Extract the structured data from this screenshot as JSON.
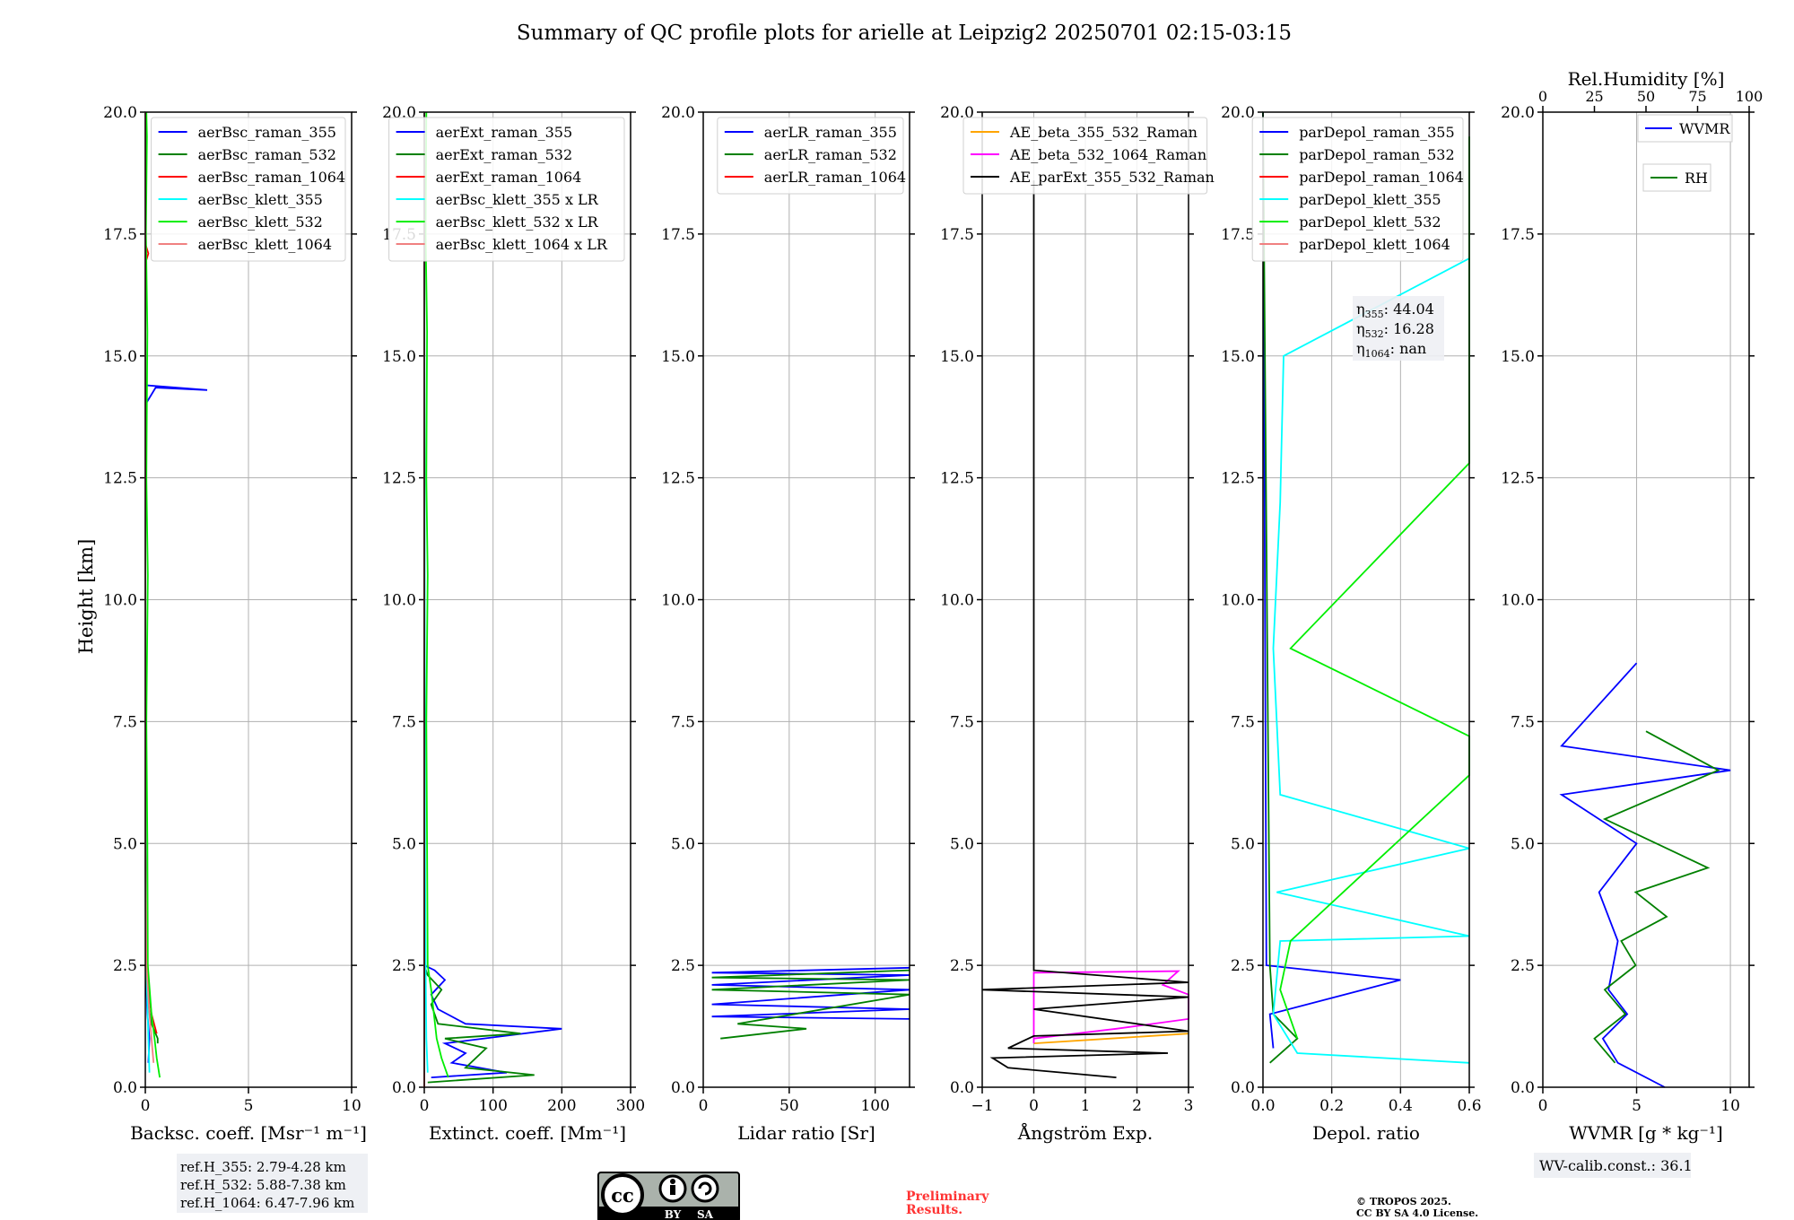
{
  "figure": {
    "title": "Summary of QC profile plots for arielle at Leipzig2 20250701 02:15-03:15",
    "ylabel": "Height [km]",
    "ylim": [
      0,
      20
    ],
    "yticks": [
      "0.0",
      "2.5",
      "5.0",
      "7.5",
      "10.0",
      "12.5",
      "15.0",
      "17.5",
      "20.0"
    ],
    "ref_heights": [
      "ref.H_355: 2.79-4.28 km",
      "ref.H_532: 5.88-7.38 km",
      "ref.H_1064: 6.47-7.96 km"
    ],
    "wv_calib": "WV-calib.const.: 36.1",
    "eta_labels": [
      "η355: 44.04",
      "η532: 16.28",
      "η1064: nan"
    ],
    "eta": [
      {
        "sub": "355",
        "value": "44.04"
      },
      {
        "sub": "532",
        "value": "16.28"
      },
      {
        "sub": "1064",
        "value": "nan"
      }
    ],
    "preliminary": [
      "Preliminary",
      "Results."
    ],
    "copyright": [
      "© TROPOS 2025.",
      "CC BY SA 4.0 License."
    ],
    "license_badge": {
      "icon": "cc-by-sa-icon",
      "labels": [
        "BY",
        "SA"
      ]
    }
  },
  "chart_data": [
    {
      "type": "line",
      "id": "backscatter",
      "xlabel": "Backsc. coeff. [Msr⁻¹ m⁻¹]",
      "xlim": [
        0,
        10
      ],
      "xticks": [
        "0",
        "5",
        "10"
      ],
      "legend_position": "top-right",
      "series": [
        {
          "name": "aerBsc_raman_355",
          "color": "#0000ff",
          "points": [
            [
              0.15,
              0.5
            ],
            [
              0.2,
              1.0
            ],
            [
              0.1,
              1.5
            ],
            [
              0.05,
              2.0
            ],
            [
              0.02,
              2.5
            ],
            [
              0.01,
              5
            ],
            [
              0,
              10
            ],
            [
              0,
              14
            ],
            [
              0.5,
              14.35
            ],
            [
              3.0,
              14.3
            ],
            [
              0,
              14.4
            ],
            [
              0,
              20
            ]
          ]
        },
        {
          "name": "aerBsc_raman_532",
          "color": "#008000",
          "points": [
            [
              0.6,
              0.9
            ],
            [
              0.6,
              1.0
            ],
            [
              0.3,
              1.3
            ],
            [
              0.1,
              1.8
            ],
            [
              0.02,
              2.5
            ],
            [
              0.01,
              5
            ],
            [
              0,
              10
            ],
            [
              0,
              20
            ]
          ]
        },
        {
          "name": "aerBsc_raman_1064",
          "color": "#ff0000",
          "points": [
            [
              0.55,
              1.1
            ],
            [
              0.3,
              1.5
            ],
            [
              0.15,
              2.0
            ],
            [
              0.05,
              2.5
            ],
            [
              0,
              5
            ],
            [
              0,
              16.9
            ],
            [
              0.15,
              17.1
            ],
            [
              0,
              17.3
            ],
            [
              0,
              20
            ]
          ]
        },
        {
          "name": "aerBsc_klett_355",
          "color": "#00ffff",
          "points": [
            [
              0.2,
              0.3
            ],
            [
              0.15,
              1.0
            ],
            [
              0.05,
              2.5
            ],
            [
              0,
              5
            ],
            [
              0,
              20
            ]
          ]
        },
        {
          "name": "aerBsc_klett_532",
          "color": "#00ee00",
          "points": [
            [
              0.7,
              0.2
            ],
            [
              0.55,
              0.6
            ],
            [
              0.45,
              1.0
            ],
            [
              0.3,
              1.5
            ],
            [
              0.12,
              2.5
            ],
            [
              0.1,
              5
            ],
            [
              0.05,
              7.5
            ],
            [
              0.12,
              10.5
            ],
            [
              0.05,
              12.5
            ],
            [
              0.1,
              15.5
            ],
            [
              0.03,
              17.5
            ],
            [
              0.08,
              19.5
            ],
            [
              0.05,
              20
            ]
          ]
        },
        {
          "name": "aerBsc_klett_1064",
          "color": "#f08080",
          "points": [
            [
              0.4,
              0.5
            ],
            [
              0.2,
              1.5
            ],
            [
              0.05,
              2.5
            ],
            [
              0,
              5
            ],
            [
              0,
              20
            ]
          ]
        }
      ]
    },
    {
      "type": "line",
      "id": "extinction",
      "xlabel": "Extinct. coeff. [Mm⁻¹]",
      "xlim": [
        0,
        300
      ],
      "xticks": [
        "0",
        "100",
        "200",
        "300"
      ],
      "legend_position": "top-right",
      "series": [
        {
          "name": "aerExt_raman_355",
          "color": "#0000ff",
          "points": [
            [
              10,
              0.2
            ],
            [
              120,
              0.3
            ],
            [
              40,
              0.5
            ],
            [
              60,
              0.7
            ],
            [
              30,
              0.9
            ],
            [
              200,
              1.2
            ],
            [
              60,
              1.3
            ],
            [
              20,
              1.6
            ],
            [
              10,
              1.9
            ],
            [
              30,
              2.2
            ],
            [
              15,
              2.4
            ],
            [
              0,
              2.5
            ]
          ]
        },
        {
          "name": "aerExt_raman_532",
          "color": "#008000",
          "points": [
            [
              5,
              0.1
            ],
            [
              160,
              0.25
            ],
            [
              60,
              0.4
            ],
            [
              90,
              0.8
            ],
            [
              30,
              1.0
            ],
            [
              140,
              1.1
            ],
            [
              20,
              1.3
            ],
            [
              10,
              1.7
            ],
            [
              25,
              2.0
            ],
            [
              5,
              2.3
            ],
            [
              0,
              2.5
            ]
          ]
        },
        {
          "name": "aerExt_raman_1064",
          "color": "#ff0000",
          "points": [
            [
              0,
              0
            ],
            [
              0,
              20
            ]
          ]
        },
        {
          "name": "aerBsc_klett_355 x LR",
          "color": "#00ffff",
          "points": [
            [
              5,
              0.3
            ],
            [
              3,
              1.0
            ],
            [
              2,
              2.5
            ],
            [
              1,
              5
            ],
            [
              0,
              20
            ]
          ]
        },
        {
          "name": "aerBsc_klett_532 x LR",
          "color": "#00ee00",
          "points": [
            [
              35,
              0.2
            ],
            [
              25,
              0.6
            ],
            [
              18,
              1.0
            ],
            [
              10,
              2.0
            ],
            [
              5,
              2.5
            ],
            [
              4,
              5
            ],
            [
              3,
              7.5
            ],
            [
              5,
              10.5
            ],
            [
              3,
              12.5
            ],
            [
              4,
              15.5
            ],
            [
              2,
              17.5
            ],
            [
              3,
              20
            ]
          ]
        },
        {
          "name": "aerBsc_klett_1064 x LR",
          "color": "#f08080",
          "points": [
            [
              0,
              0
            ],
            [
              0,
              20
            ]
          ]
        }
      ]
    },
    {
      "type": "line",
      "id": "lidar-ratio",
      "xlabel": "Lidar ratio [Sr]",
      "xlim": [
        0,
        120
      ],
      "xticks": [
        "0",
        "50",
        "100"
      ],
      "legend_position": "top-right",
      "series": [
        {
          "name": "aerLR_raman_355",
          "color": "#0000ff",
          "points": [
            [
              120,
              1.4
            ],
            [
              5,
              1.45
            ],
            [
              120,
              1.6
            ],
            [
              5,
              1.7
            ],
            [
              120,
              2.0
            ],
            [
              5,
              2.1
            ],
            [
              120,
              2.3
            ],
            [
              5,
              2.35
            ],
            [
              120,
              2.45
            ]
          ]
        },
        {
          "name": "aerLR_raman_532",
          "color": "#008000",
          "points": [
            [
              10,
              1.0
            ],
            [
              60,
              1.2
            ],
            [
              20,
              1.3
            ],
            [
              120,
              1.9
            ],
            [
              5,
              2.0
            ],
            [
              120,
              2.2
            ],
            [
              5,
              2.25
            ],
            [
              120,
              2.4
            ]
          ]
        },
        {
          "name": "aerLR_raman_1064",
          "color": "#ff0000",
          "points": []
        }
      ]
    },
    {
      "type": "line",
      "id": "angstrom",
      "xlabel": "Ångström Exp.",
      "xlim": [
        -1,
        3
      ],
      "xticks": [
        "−1",
        "0",
        "1",
        "2",
        "3"
      ],
      "legend_position": "top-center",
      "series": [
        {
          "name": "AE_beta_355_532_Raman",
          "color": "#ffa500",
          "points": [
            [
              0,
              0.9
            ],
            [
              1.5,
              1.0
            ],
            [
              3.0,
              1.1
            ]
          ]
        },
        {
          "name": "AE_beta_532_1064_Raman",
          "color": "#ff00ff",
          "points": [
            [
              0,
              0.9
            ],
            [
              0,
              2.35
            ],
            [
              2.8,
              2.38
            ],
            [
              2.5,
              2.1
            ],
            [
              3.0,
              1.9
            ],
            [
              3.0,
              1.4
            ],
            [
              1.6,
              1.2
            ],
            [
              0,
              1.0
            ]
          ]
        },
        {
          "name": "AE_parExt_355_532_Raman",
          "color": "#000000",
          "points": [
            [
              1.6,
              0.2
            ],
            [
              -0.5,
              0.4
            ],
            [
              -0.8,
              0.6
            ],
            [
              2.6,
              0.7
            ],
            [
              -0.5,
              0.8
            ],
            [
              0,
              1.05
            ],
            [
              3.0,
              1.15
            ],
            [
              0,
              1.6
            ],
            [
              3.0,
              1.85
            ],
            [
              -1.0,
              2.0
            ],
            [
              3.0,
              2.15
            ],
            [
              0,
              2.4
            ],
            [
              0,
              18.6
            ]
          ]
        }
      ]
    },
    {
      "type": "line",
      "id": "depol",
      "xlabel": "Depol. ratio",
      "xlim": [
        0,
        0.6
      ],
      "xticks": [
        "0.0",
        "0.2",
        "0.4",
        "0.6"
      ],
      "legend_position": "top-right",
      "series": [
        {
          "name": "parDepol_raman_355",
          "color": "#0000ff",
          "points": [
            [
              0.03,
              0.8
            ],
            [
              0.02,
              1.5
            ],
            [
              0.4,
              2.2
            ],
            [
              0.01,
              2.5
            ],
            [
              0,
              20
            ]
          ]
        },
        {
          "name": "parDepol_raman_532",
          "color": "#008000",
          "points": [
            [
              0.02,
              0.5
            ],
            [
              0.1,
              1.0
            ],
            [
              0.03,
              1.5
            ],
            [
              0.02,
              2.5
            ],
            [
              0,
              20
            ]
          ]
        },
        {
          "name": "parDepol_raman_1064",
          "color": "#ff0000",
          "points": []
        },
        {
          "name": "parDepol_klett_355",
          "color": "#00ffff",
          "points": [
            [
              0.6,
              0.5
            ],
            [
              0.1,
              0.7
            ],
            [
              0.03,
              1.5
            ],
            [
              0.05,
              3
            ],
            [
              0.6,
              3.1
            ],
            [
              0.04,
              4
            ],
            [
              0.6,
              4.9
            ],
            [
              0.05,
              6
            ],
            [
              0.03,
              9
            ],
            [
              0.05,
              12
            ],
            [
              0.06,
              15
            ],
            [
              0.6,
              17
            ]
          ]
        },
        {
          "name": "parDepol_klett_532",
          "color": "#00ee00",
          "points": [
            [
              0.1,
              1.0
            ],
            [
              0.05,
              2.0
            ],
            [
              0.08,
              3
            ],
            [
              0.6,
              6.4
            ],
            [
              0.6,
              7.2
            ],
            [
              0.08,
              9
            ],
            [
              0.6,
              12.8
            ],
            [
              0.6,
              15.2
            ],
            [
              0.6,
              18.0
            ],
            [
              0.6,
              19.5
            ]
          ]
        },
        {
          "name": "parDepol_klett_1064",
          "color": "#f08080",
          "points": []
        }
      ]
    },
    {
      "type": "line",
      "id": "wv",
      "xlabel": "WVMR [g * kg⁻¹]",
      "xlim": [
        0,
        11
      ],
      "xticks": [
        "0",
        "5",
        "10"
      ],
      "top_xlabel": "Rel.Humidity [%]",
      "top_xlim": [
        0,
        100
      ],
      "top_xticks": [
        "0",
        "25",
        "50",
        "75",
        "100"
      ],
      "series": [
        {
          "name": "WVMR",
          "color": "#0000ff",
          "axis": "bottom",
          "points": [
            [
              6.5,
              0
            ],
            [
              4.0,
              0.5
            ],
            [
              3.2,
              1.0
            ],
            [
              4.5,
              1.5
            ],
            [
              3.5,
              2.0
            ],
            [
              4.0,
              3.0
            ],
            [
              3.0,
              4.0
            ],
            [
              5.0,
              5.0
            ],
            [
              1.0,
              6.0
            ],
            [
              10.0,
              6.5
            ],
            [
              1.0,
              7.0
            ],
            [
              5.0,
              8.7
            ]
          ]
        },
        {
          "name": "RH",
          "color": "#008000",
          "axis": "top",
          "points": [
            [
              35,
              0.5
            ],
            [
              25,
              1.0
            ],
            [
              40,
              1.5
            ],
            [
              30,
              2.0
            ],
            [
              45,
              2.5
            ],
            [
              38,
              3.0
            ],
            [
              60,
              3.5
            ],
            [
              45,
              4.0
            ],
            [
              80,
              4.5
            ],
            [
              30,
              5.5
            ],
            [
              85,
              6.5
            ],
            [
              50,
              7.3
            ]
          ]
        }
      ]
    }
  ]
}
